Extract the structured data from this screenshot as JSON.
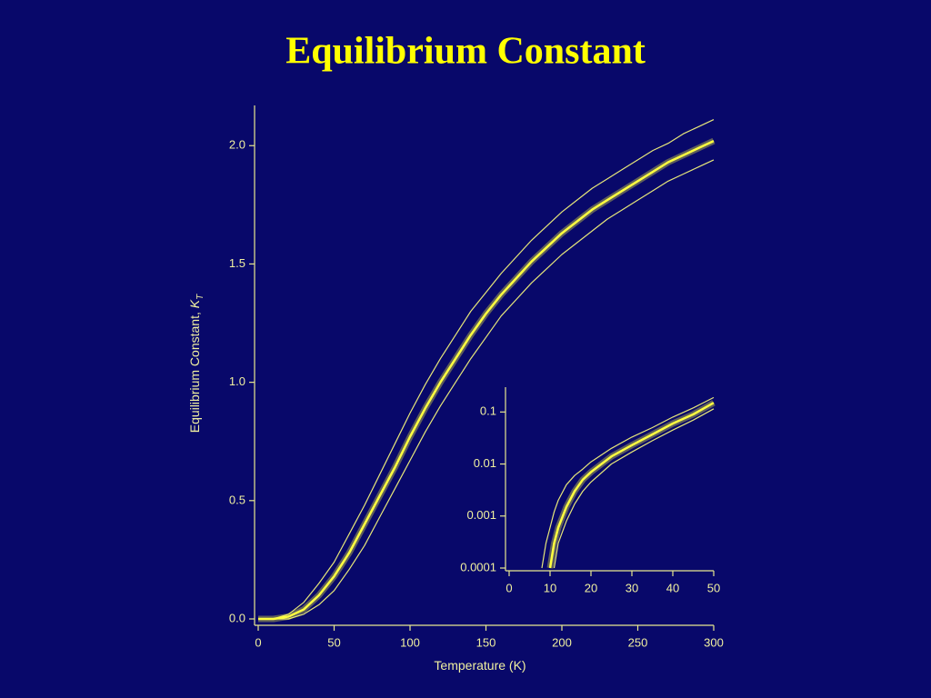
{
  "chart_data": [
    {
      "type": "line",
      "title": "Equilibrium Constant",
      "xlabel": "Temperature (K)",
      "ylabel": "Equilibrium Constant,",
      "ylabel_symbol": "K",
      "ylabel_subscript": "T",
      "x": [
        0,
        10,
        20,
        30,
        40,
        50,
        60,
        70,
        80,
        90,
        100,
        110,
        120,
        130,
        140,
        150,
        160,
        170,
        180,
        190,
        200,
        210,
        220,
        230,
        240,
        250,
        260,
        270,
        280,
        290,
        300
      ],
      "series": [
        {
          "color": "#ffff40",
          "values": [
            0,
            0,
            0.01,
            0.04,
            0.1,
            0.18,
            0.28,
            0.4,
            0.52,
            0.64,
            0.77,
            0.89,
            1.0,
            1.1,
            1.2,
            1.29,
            1.37,
            1.44,
            1.51,
            1.57,
            1.63,
            1.68,
            1.73,
            1.77,
            1.81,
            1.85,
            1.89,
            1.93,
            1.96,
            1.99,
            2.02
          ]
        },
        {
          "color": "#e6e67a",
          "values": [
            0,
            0,
            0.02,
            0.07,
            0.15,
            0.24,
            0.36,
            0.48,
            0.61,
            0.74,
            0.87,
            0.99,
            1.1,
            1.2,
            1.3,
            1.38,
            1.46,
            1.53,
            1.6,
            1.66,
            1.72,
            1.77,
            1.82,
            1.86,
            1.9,
            1.94,
            1.98,
            2.01,
            2.05,
            2.08,
            2.11
          ]
        },
        {
          "color": "#e6e67a",
          "values": [
            0,
            0,
            0,
            0.02,
            0.06,
            0.12,
            0.21,
            0.31,
            0.43,
            0.55,
            0.67,
            0.79,
            0.9,
            1.0,
            1.1,
            1.19,
            1.28,
            1.35,
            1.42,
            1.48,
            1.54,
            1.59,
            1.64,
            1.69,
            1.73,
            1.77,
            1.81,
            1.85,
            1.88,
            1.91,
            1.94
          ]
        }
      ],
      "xlim": [
        0,
        300
      ],
      "xticks": [
        0,
        50,
        100,
        150,
        200,
        250,
        300
      ],
      "ylim": [
        0,
        2.17
      ],
      "yticks": [
        {
          "value": 0,
          "label": "0.0"
        },
        {
          "value": 0.5,
          "label": "0.5"
        },
        {
          "value": 1,
          "label": "1.0"
        },
        {
          "value": 1.5,
          "label": "1.5"
        },
        {
          "value": 2,
          "label": "2.0"
        }
      ]
    },
    {
      "type": "line",
      "log_y": true,
      "x": [
        8,
        9,
        10,
        11,
        12,
        14,
        16,
        18,
        20,
        25,
        30,
        35,
        40,
        45,
        50
      ],
      "series": [
        {
          "color": "#ffff40",
          "values": [
            null,
            null,
            0.0001,
            0.0003,
            0.0006,
            0.0015,
            0.003,
            0.005,
            0.007,
            0.014,
            0.023,
            0.037,
            0.06,
            0.09,
            0.15
          ]
        },
        {
          "color": "#e6e67a",
          "values": [
            0.0001,
            0.0003,
            0.0006,
            0.0012,
            0.002,
            0.004,
            0.006,
            0.008,
            0.011,
            0.02,
            0.033,
            0.05,
            0.08,
            0.12,
            0.19
          ]
        },
        {
          "color": "#e6e67a",
          "values": [
            null,
            null,
            null,
            0.0001,
            0.0003,
            0.0008,
            0.0017,
            0.003,
            0.0045,
            0.01,
            0.017,
            0.028,
            0.045,
            0.07,
            0.115
          ]
        }
      ],
      "xlim": [
        0,
        50
      ],
      "xticks": [
        0,
        10,
        20,
        30,
        40,
        50
      ],
      "ylim": [
        0.0001,
        0.3
      ],
      "yticks": [
        0.0001,
        0.001,
        0.01,
        0.1
      ]
    }
  ]
}
